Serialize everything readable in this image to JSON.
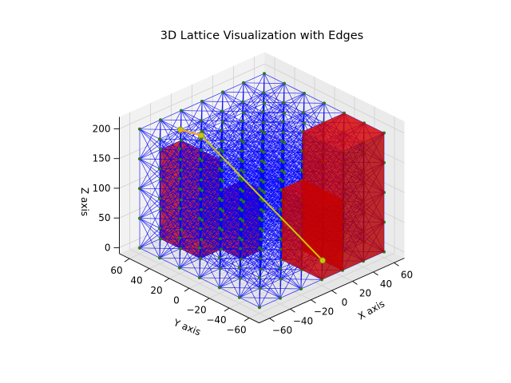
{
  "chart_data": {
    "type": "scatter3d",
    "title": "3D Lattice Visualization with Edges",
    "xlabel": "X axis",
    "ylabel": "Y axis",
    "zlabel": "Z axis",
    "x_ticks": [
      -60,
      -40,
      -20,
      0,
      20,
      40,
      60
    ],
    "y_ticks": [
      60,
      40,
      20,
      0,
      -20,
      -40,
      -60
    ],
    "z_ticks": [
      0,
      50,
      100,
      150,
      200
    ],
    "xlim": [
      -70,
      70
    ],
    "ylim": [
      -70,
      70
    ],
    "zlim": [
      -10,
      220
    ],
    "grid": true,
    "lattice": {
      "x_values": [
        -60,
        -40,
        -20,
        0,
        20,
        40,
        60
      ],
      "y_values": [
        -60,
        -40,
        -20,
        0,
        20,
        40,
        60
      ],
      "z_values": [
        0,
        50,
        100,
        150,
        200
      ],
      "node_color": "#2a7a1a",
      "edge_color": "#0000ff"
    },
    "obstacles": [
      {
        "x": [
          -40,
          -20
        ],
        "y": [
          20,
          60
        ],
        "z": [
          0,
          150
        ],
        "color": "#cc0000"
      },
      {
        "x": [
          -20,
          0
        ],
        "y": [
          0,
          20
        ],
        "z": [
          0,
          100
        ],
        "color": "#cc0000"
      },
      {
        "x": [
          0,
          20
        ],
        "y": [
          -60,
          -20
        ],
        "z": [
          0,
          120
        ],
        "color": "#cc0000"
      },
      {
        "x": [
          20,
          60
        ],
        "y": [
          -60,
          -20
        ],
        "z": [
          0,
          200
        ],
        "color": "#cc0000"
      }
    ],
    "path": {
      "color": "#c8c800",
      "points": [
        {
          "x": -40,
          "y": 40,
          "z": 200
        },
        {
          "x": -20,
          "y": 40,
          "z": 175
        },
        {
          "x": 20,
          "y": -40,
          "z": 0
        }
      ]
    },
    "path_arrows": {
      "color": "#f5a623",
      "from": {
        "x": -20,
        "y": 40,
        "z": 175
      },
      "to": {
        "x": -40,
        "y": 40,
        "z": 200
      }
    }
  }
}
